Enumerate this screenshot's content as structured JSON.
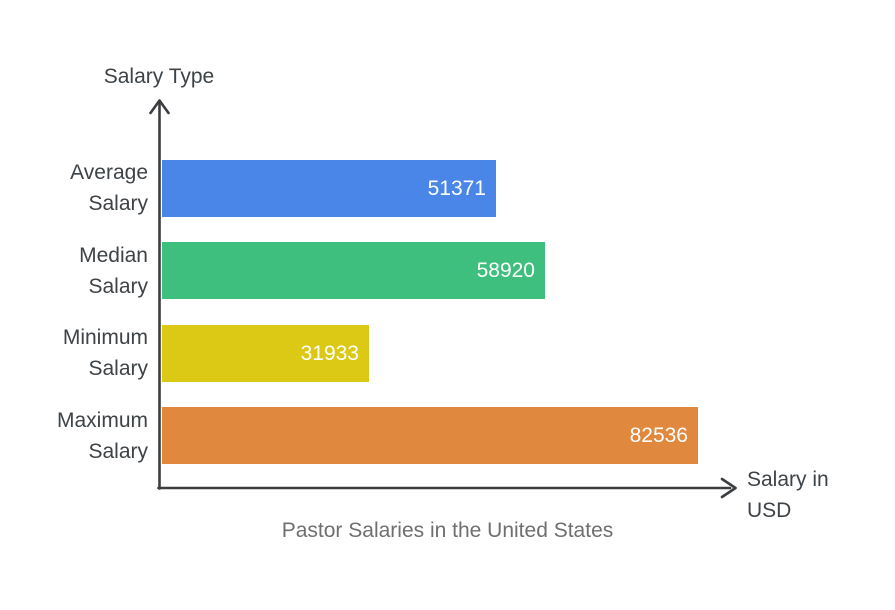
{
  "chart_data": {
    "type": "bar",
    "orientation": "horizontal",
    "title": "Pastor Salaries in the United States",
    "xlabel": "Salary in USD",
    "ylabel": "Salary Type",
    "categories": [
      "Average Salary",
      "Median Salary",
      "Minimum Salary",
      "Maximum Salary"
    ],
    "values": [
      51371,
      58920,
      31933,
      82536
    ],
    "bar_colors": [
      "#4a86e8",
      "#3fbf7e",
      "#dbc916",
      "#e0883e"
    ],
    "value_label_color": "#ffffff",
    "axis_color": "#3b3d40",
    "label_color": "#3e4347",
    "title_color": "#6f6f6f",
    "xlim": [
      0,
      88500
    ],
    "grid": false,
    "legend": "none",
    "value_labels_position": "inside-end"
  }
}
